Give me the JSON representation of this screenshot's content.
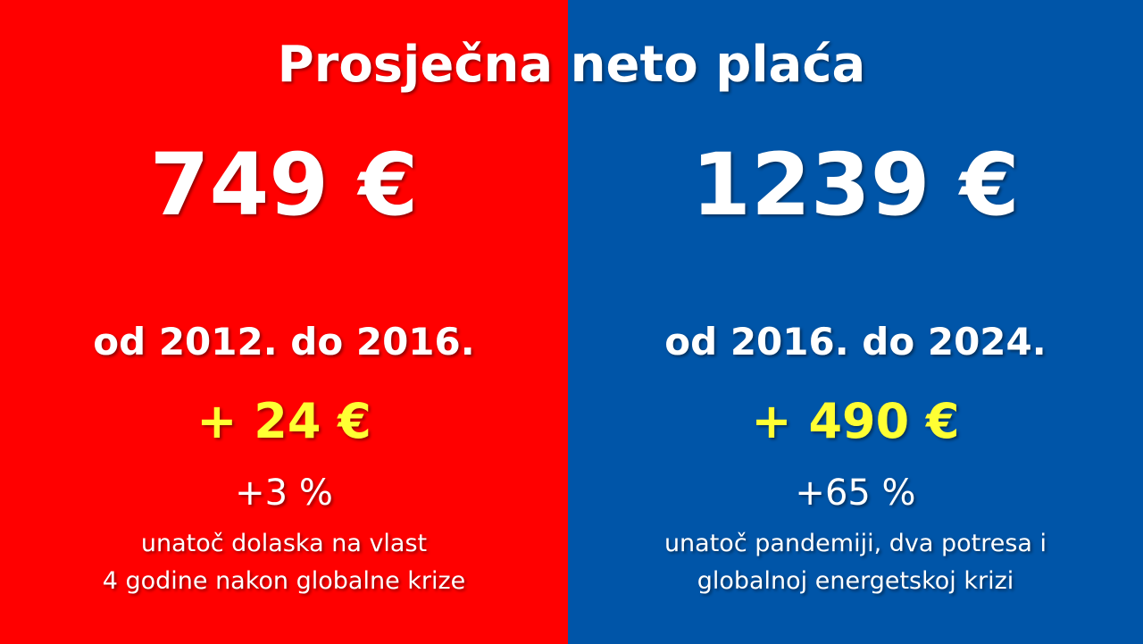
{
  "title": "Prosječna neto plaća",
  "colors": {
    "left_background": "#ff0000",
    "right_background": "#0055a8",
    "highlight": "#ffff33",
    "text": "#ffffff"
  },
  "left": {
    "amount": "749 €",
    "period": "od 2012. do 2016.",
    "change": "+ 24 €",
    "percent": "+3 %",
    "note_lines": [
      "unatoč dolaska na vlast",
      "4 godine nakon globalne krize"
    ]
  },
  "right": {
    "amount": "1239 €",
    "period": "od 2016. do 2024.",
    "change": "+ 490 €",
    "percent": "+65 %",
    "note_lines": [
      "unatoč pandemiji, dva potresa i",
      "globalnoj energetskoj krizi"
    ]
  }
}
